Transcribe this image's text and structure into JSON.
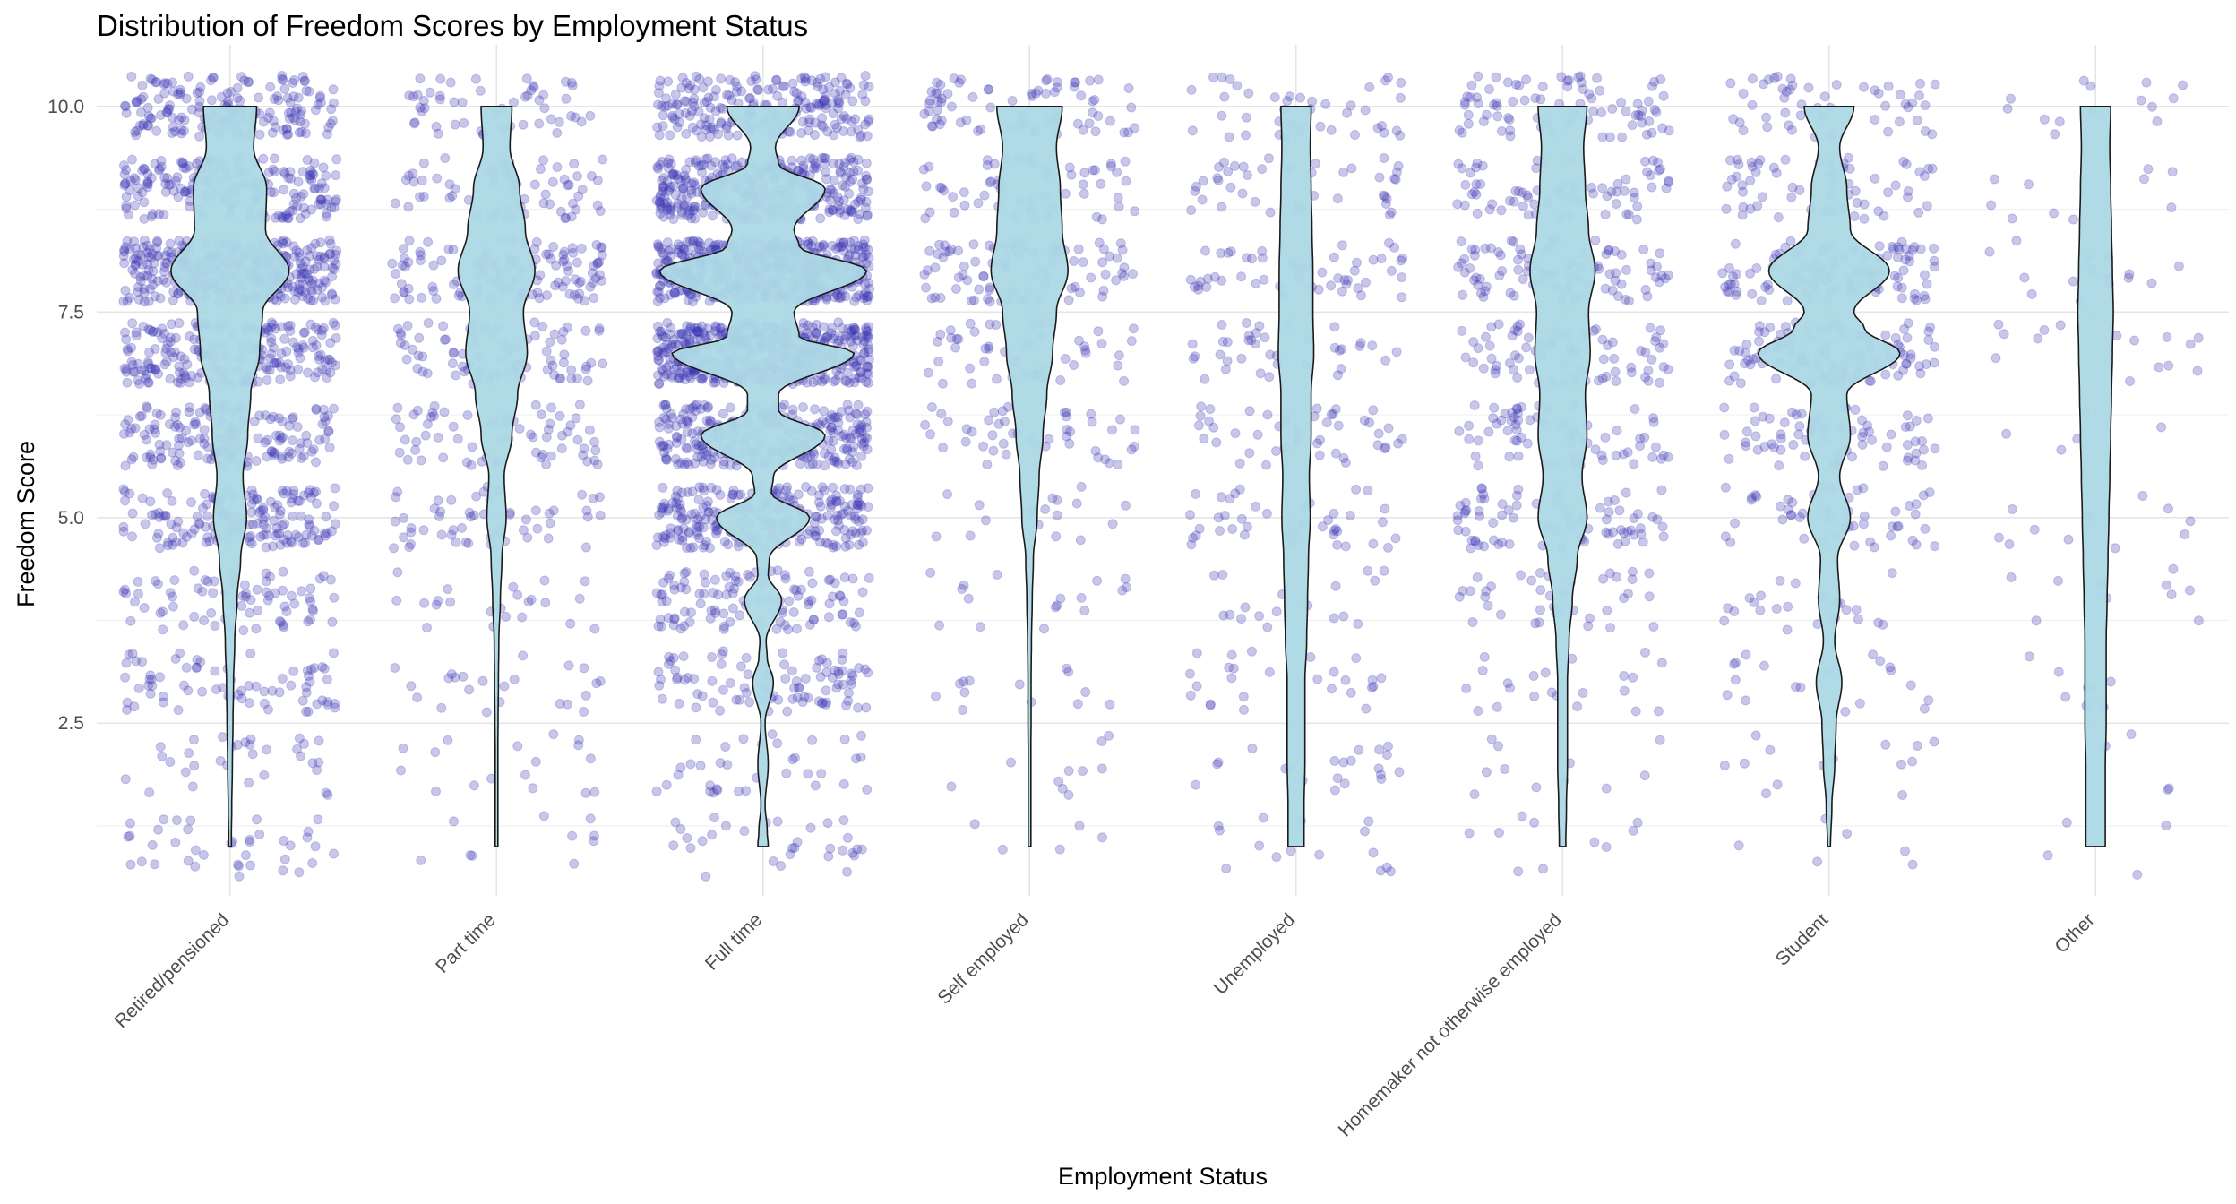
{
  "chart_data": {
    "type": "violin",
    "title": "Distribution of Freedom Scores by Employment Status",
    "xlabel": "Employment Status",
    "ylabel": "Freedom Score",
    "ylim": [
      0.4,
      10.75
    ],
    "yticks": [
      2.5,
      5.0,
      7.5,
      10.0
    ],
    "ytick_labels": [
      "2.5",
      "5.0",
      "7.5",
      "10.0"
    ],
    "grid": true,
    "legend": "none",
    "colors": {
      "violin_fill": "#add8e6",
      "violin_stroke": "#1a1a1a",
      "points": "#3b35b5"
    },
    "categories": [
      "Retired/pensioned",
      "Part time",
      "Full time",
      "Self employed",
      "Unemployed",
      "Homemaker not otherwise employed",
      "Student",
      "Other"
    ],
    "violins": [
      {
        "category": "Retired/pensioned",
        "range": [
          1,
          10
        ],
        "peak": 8.0,
        "max_width": 1.0,
        "density": [
          [
            1,
            0.02
          ],
          [
            1.5,
            0.03
          ],
          [
            2,
            0.04
          ],
          [
            2.5,
            0.05
          ],
          [
            3,
            0.06
          ],
          [
            3.5,
            0.08
          ],
          [
            4,
            0.12
          ],
          [
            4.5,
            0.18
          ],
          [
            5,
            0.28
          ],
          [
            5.5,
            0.22
          ],
          [
            6,
            0.3
          ],
          [
            6.5,
            0.35
          ],
          [
            7,
            0.5
          ],
          [
            7.5,
            0.55
          ],
          [
            8,
            1.0
          ],
          [
            8.5,
            0.6
          ],
          [
            9,
            0.62
          ],
          [
            9.5,
            0.4
          ],
          [
            10,
            0.45
          ]
        ]
      },
      {
        "category": "Part time",
        "range": [
          1,
          10
        ],
        "peak": 8.0,
        "max_width": 0.65,
        "density": [
          [
            1,
            0.02
          ],
          [
            1.5,
            0.02
          ],
          [
            2,
            0.03
          ],
          [
            2.5,
            0.04
          ],
          [
            3,
            0.05
          ],
          [
            3.5,
            0.06
          ],
          [
            4,
            0.1
          ],
          [
            4.5,
            0.14
          ],
          [
            5,
            0.25
          ],
          [
            5.5,
            0.2
          ],
          [
            6,
            0.4
          ],
          [
            6.5,
            0.55
          ],
          [
            7,
            0.8
          ],
          [
            7.5,
            0.7
          ],
          [
            8,
            1.0
          ],
          [
            8.5,
            0.75
          ],
          [
            9,
            0.6
          ],
          [
            9.5,
            0.35
          ],
          [
            10,
            0.4
          ]
        ]
      },
      {
        "category": "Full time",
        "range": [
          1,
          10
        ],
        "peak": 8.0,
        "max_width": 1.75,
        "density": [
          [
            1,
            0.05
          ],
          [
            1.2,
            0.04
          ],
          [
            1.5,
            0.02
          ],
          [
            2,
            0.05
          ],
          [
            2.5,
            0.02
          ],
          [
            3,
            0.1
          ],
          [
            3.3,
            0.04
          ],
          [
            3.5,
            0.03
          ],
          [
            4,
            0.18
          ],
          [
            4.3,
            0.05
          ],
          [
            4.5,
            0.06
          ],
          [
            5,
            0.45
          ],
          [
            5.3,
            0.08
          ],
          [
            5.5,
            0.1
          ],
          [
            6,
            0.6
          ],
          [
            6.3,
            0.15
          ],
          [
            6.5,
            0.15
          ],
          [
            7,
            0.88
          ],
          [
            7.2,
            0.35
          ],
          [
            7.5,
            0.3
          ],
          [
            8,
            1.0
          ],
          [
            8.3,
            0.35
          ],
          [
            8.5,
            0.3
          ],
          [
            9,
            0.6
          ],
          [
            9.3,
            0.15
          ],
          [
            9.5,
            0.12
          ],
          [
            10,
            0.35
          ]
        ]
      },
      {
        "category": "Self employed",
        "range": [
          1,
          10
        ],
        "peak": 8.0,
        "max_width": 0.65,
        "density": [
          [
            1,
            0.01
          ],
          [
            1.5,
            0.02
          ],
          [
            2,
            0.03
          ],
          [
            2.5,
            0.04
          ],
          [
            3,
            0.04
          ],
          [
            3.5,
            0.05
          ],
          [
            4,
            0.07
          ],
          [
            4.5,
            0.1
          ],
          [
            5,
            0.2
          ],
          [
            5.5,
            0.25
          ],
          [
            6,
            0.35
          ],
          [
            6.5,
            0.45
          ],
          [
            7,
            0.6
          ],
          [
            7.5,
            0.7
          ],
          [
            8,
            1.0
          ],
          [
            8.5,
            0.85
          ],
          [
            9,
            0.8
          ],
          [
            9.5,
            0.7
          ],
          [
            10,
            0.85
          ]
        ]
      },
      {
        "category": "Unemployed",
        "range": [
          1,
          10
        ],
        "peak": 7.0,
        "max_width": 0.3,
        "density": [
          [
            1,
            0.45
          ],
          [
            1.5,
            0.45
          ],
          [
            2,
            0.5
          ],
          [
            2.5,
            0.5
          ],
          [
            3,
            0.5
          ],
          [
            3.5,
            0.6
          ],
          [
            4,
            0.65
          ],
          [
            4.5,
            0.7
          ],
          [
            5,
            0.8
          ],
          [
            5.5,
            0.75
          ],
          [
            6,
            0.85
          ],
          [
            6.5,
            0.85
          ],
          [
            7,
            1.0
          ],
          [
            7.5,
            0.95
          ],
          [
            8,
            0.95
          ],
          [
            8.5,
            0.9
          ],
          [
            9,
            0.85
          ],
          [
            9.5,
            0.8
          ],
          [
            10,
            0.85
          ]
        ]
      },
      {
        "category": "Homemaker not otherwise employed",
        "range": [
          1,
          10
        ],
        "peak": 8.0,
        "max_width": 0.55,
        "density": [
          [
            1,
            0.1
          ],
          [
            1.5,
            0.12
          ],
          [
            2,
            0.15
          ],
          [
            2.5,
            0.15
          ],
          [
            3,
            0.15
          ],
          [
            3.5,
            0.2
          ],
          [
            4,
            0.3
          ],
          [
            4.5,
            0.45
          ],
          [
            5,
            0.75
          ],
          [
            5.5,
            0.6
          ],
          [
            6,
            0.75
          ],
          [
            6.5,
            0.7
          ],
          [
            7,
            0.85
          ],
          [
            7.5,
            0.8
          ],
          [
            8,
            1.0
          ],
          [
            8.5,
            0.8
          ],
          [
            9,
            0.7
          ],
          [
            9.5,
            0.65
          ],
          [
            10,
            0.75
          ]
        ]
      },
      {
        "category": "Student",
        "range": [
          1,
          10
        ],
        "peak": 7.0,
        "max_width": 1.2,
        "density": [
          [
            1,
            0.02
          ],
          [
            1.5,
            0.04
          ],
          [
            2,
            0.08
          ],
          [
            2.5,
            0.1
          ],
          [
            3,
            0.18
          ],
          [
            3.5,
            0.08
          ],
          [
            4,
            0.15
          ],
          [
            4.5,
            0.12
          ],
          [
            5,
            0.3
          ],
          [
            5.5,
            0.15
          ],
          [
            6,
            0.3
          ],
          [
            6.5,
            0.25
          ],
          [
            7,
            1.0
          ],
          [
            7.3,
            0.5
          ],
          [
            7.5,
            0.35
          ],
          [
            8,
            0.85
          ],
          [
            8.5,
            0.3
          ],
          [
            9,
            0.25
          ],
          [
            9.5,
            0.15
          ],
          [
            10,
            0.35
          ]
        ]
      },
      {
        "category": "Other",
        "range": [
          1,
          10
        ],
        "peak": 7.5,
        "max_width": 0.3,
        "density": [
          [
            1,
            0.55
          ],
          [
            1.5,
            0.55
          ],
          [
            2,
            0.55
          ],
          [
            2.5,
            0.6
          ],
          [
            3,
            0.6
          ],
          [
            3.5,
            0.6
          ],
          [
            4,
            0.65
          ],
          [
            4.5,
            0.7
          ],
          [
            5,
            0.75
          ],
          [
            5.5,
            0.8
          ],
          [
            6,
            0.85
          ],
          [
            6.5,
            0.9
          ],
          [
            7,
            0.95
          ],
          [
            7.5,
            1.0
          ],
          [
            8,
            0.95
          ],
          [
            8.5,
            0.9
          ],
          [
            9,
            0.85
          ],
          [
            9.5,
            0.8
          ],
          [
            10,
            0.85
          ]
        ]
      }
    ],
    "jitter_points": {
      "alpha": 0.28,
      "counts": [
        1450,
        520,
        2250,
        380,
        340,
        560,
        520,
        95
      ],
      "score_weights": {
        "levels": [
          1,
          2,
          3,
          4,
          5,
          6,
          7,
          8,
          9,
          10
        ],
        "Retired/pensioned": [
          3,
          3,
          4,
          5,
          11,
          10,
          16,
          22,
          14,
          12
        ],
        "Part time": [
          2,
          3,
          4,
          5,
          10,
          12,
          18,
          22,
          13,
          11
        ],
        "Full time": [
          2,
          2,
          4,
          5,
          10,
          12,
          19,
          22,
          14,
          10
        ],
        "Self employed": [
          1,
          2,
          3,
          4,
          8,
          10,
          16,
          22,
          16,
          18
        ],
        "Unemployed": [
          5,
          6,
          7,
          8,
          12,
          11,
          14,
          14,
          11,
          12
        ],
        "Homemaker not otherwise employed": [
          2,
          3,
          4,
          5,
          13,
          12,
          15,
          17,
          12,
          17
        ],
        "Student": [
          1,
          2,
          4,
          5,
          9,
          12,
          22,
          20,
          13,
          12
        ],
        "Other": [
          6,
          6,
          7,
          9,
          10,
          10,
          13,
          15,
          11,
          13
        ]
      }
    }
  }
}
